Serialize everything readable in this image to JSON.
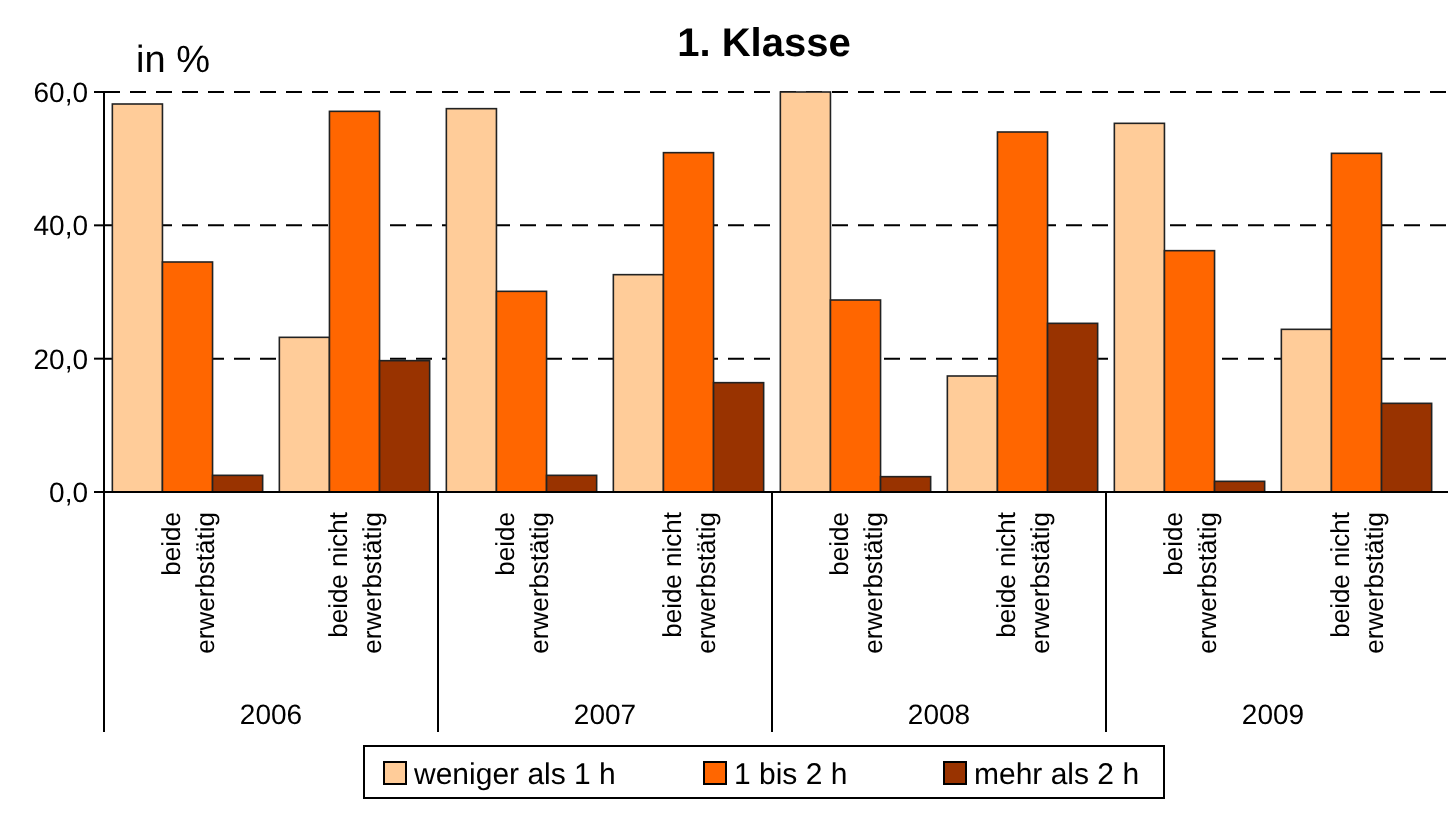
{
  "chart_data": {
    "type": "bar",
    "title": "1. Klasse",
    "ylabel": "in %",
    "categories": [
      "beide erwerbstätig",
      "beide nicht erwerbstätig",
      "beide erwerbstätig",
      "beide nicht erwerbstätig",
      "beide erwerbstätig",
      "beide nicht erwerbstätig",
      "beide erwerbstätig",
      "beide nicht erwerbstätig"
    ],
    "annotations": [
      "2006",
      "2007",
      "2008",
      "2009"
    ],
    "series": [
      {
        "name": "weniger als 1 h",
        "color": "#ffcc99",
        "values": [
          58.2,
          23.2,
          57.5,
          32.6,
          60.0,
          17.4,
          55.3,
          24.4
        ]
      },
      {
        "name": "1 bis 2 h",
        "color": "#ff6600",
        "values": [
          34.5,
          57.1,
          30.1,
          50.9,
          28.8,
          54.0,
          36.2,
          50.8
        ]
      },
      {
        "name": "mehr als 2 h",
        "color": "#993300",
        "values": [
          2.5,
          19.7,
          2.5,
          16.4,
          2.3,
          25.3,
          1.6,
          13.3
        ]
      }
    ],
    "ylim": [
      0,
      60
    ],
    "yticks": [
      {
        "value": 0,
        "label": "0,0"
      },
      {
        "value": 20,
        "label": "20,0"
      },
      {
        "value": 40,
        "label": "40,0"
      },
      {
        "value": 60,
        "label": "60,0"
      }
    ],
    "grid": "y",
    "legend": "bottom"
  }
}
